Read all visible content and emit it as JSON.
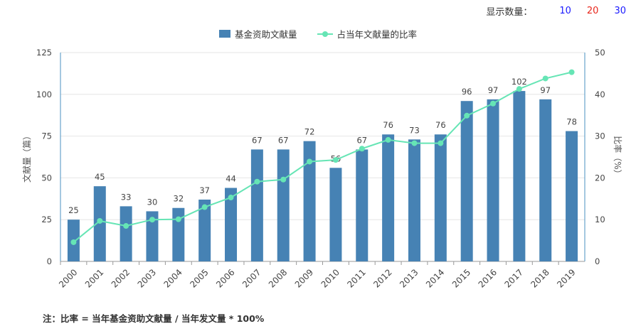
{
  "topbar": {
    "label": "显示数量：",
    "options": [
      {
        "label": "10",
        "color": "#1a1aff"
      },
      {
        "label": "20",
        "color": "#e8261b"
      },
      {
        "label": "30",
        "color": "#1a1aff"
      }
    ]
  },
  "footnote": "注：比率 = 当年基金资助文献量 / 当年发文量 * 100%",
  "colors": {
    "bar": "#4682b4",
    "line": "#66e5b5",
    "axis": "#4a90c2",
    "grid": "#e6e6e6"
  },
  "chart_data": {
    "type": "bar+line",
    "categories": [
      "2000",
      "2001",
      "2002",
      "2003",
      "2004",
      "2005",
      "2006",
      "2007",
      "2008",
      "2009",
      "2010",
      "2011",
      "2012",
      "2013",
      "2014",
      "2015",
      "2016",
      "2017",
      "2018",
      "2019"
    ],
    "series": [
      {
        "name": "基金资助文献量",
        "type": "bar",
        "axis": "left",
        "values": [
          25,
          45,
          33,
          30,
          32,
          37,
          44,
          67,
          67,
          72,
          56,
          67,
          76,
          73,
          76,
          96,
          97,
          102,
          97,
          78
        ]
      },
      {
        "name": "占当年文献量的比率",
        "type": "line",
        "axis": "right",
        "values": [
          4.6,
          9.7,
          8.5,
          10.0,
          10.1,
          13.0,
          15.3,
          19.1,
          19.6,
          23.9,
          24.3,
          27.0,
          29.1,
          28.3,
          28.3,
          34.9,
          37.8,
          41.3,
          43.8,
          45.3
        ]
      }
    ],
    "ylabel_left": "文献量（篇）",
    "ylabel_right": "比率（%）",
    "ylim_left": [
      0,
      125
    ],
    "yticks_left": [
      0,
      25,
      50,
      75,
      100,
      125
    ],
    "ylim_right": [
      0,
      50
    ],
    "yticks_right": [
      0,
      10,
      20,
      30,
      40,
      50
    ],
    "legend_position": "top-center",
    "grid": true
  }
}
